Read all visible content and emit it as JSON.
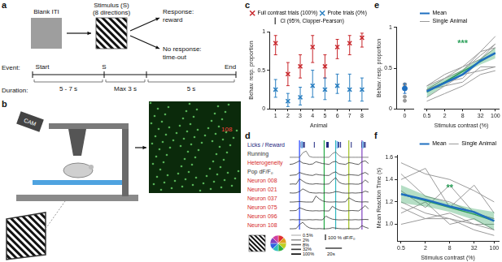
{
  "chart_data": [
    {
      "panel": "c",
      "type": "scatter",
      "xlabel": "Animal",
      "ylabel": "Behav. resp. proportion",
      "x": [
        1,
        2,
        3,
        4,
        5,
        6,
        7,
        8
      ],
      "xlim": [
        0.5,
        8.5
      ],
      "xticks": [
        1,
        2,
        3,
        4,
        5,
        6,
        7,
        8
      ],
      "ylim": [
        0,
        1
      ],
      "yticks": [
        0,
        0.5,
        1
      ],
      "grid": false,
      "legend": "top",
      "error_name": "CI (95%, Clopper-Pearson)",
      "error_color": "#000000",
      "series": [
        {
          "name": "Full contrast trials (100%)",
          "color": "#c8282d",
          "marker": "x",
          "values": [
            0.85,
            0.45,
            0.55,
            0.8,
            0.55,
            0.8,
            0.85,
            0.92
          ],
          "ci_low": [
            0.7,
            0.3,
            0.4,
            0.6,
            0.4,
            0.65,
            0.7,
            0.8
          ],
          "ci_high": [
            0.95,
            0.6,
            0.7,
            0.95,
            0.7,
            0.9,
            0.95,
            0.98
          ]
        },
        {
          "name": "Probe trials (0%)",
          "color": "#2a7fc1",
          "marker": "x",
          "values": [
            0.25,
            0.1,
            0.15,
            0.3,
            0.25,
            0.3,
            0.25,
            0.25
          ],
          "ci_low": [
            0.15,
            0.03,
            0.05,
            0.15,
            0.12,
            0.2,
            0.1,
            0.1
          ],
          "ci_high": [
            0.38,
            0.2,
            0.28,
            0.5,
            0.4,
            0.45,
            0.45,
            0.4
          ]
        }
      ]
    },
    {
      "panel": "e",
      "type": "line",
      "log": "x",
      "xlabel": "Stimulus contrast (%)",
      "ylabel": "Behav. resp. proportion",
      "x": [
        0.5,
        2,
        8,
        32,
        100
      ],
      "xlim": [
        0.4,
        130
      ],
      "xticks": [
        0.5,
        2,
        8,
        32,
        100
      ],
      "ylim": [
        0,
        1
      ],
      "yticks": [
        0,
        0.5,
        1
      ],
      "grid": false,
      "legend": "top left",
      "mean": {
        "name": "Mean",
        "color": "#1f6fc0",
        "values": [
          0.23,
          0.34,
          0.45,
          0.63,
          0.73
        ]
      },
      "animals": {
        "name": "Single Animal",
        "color": "#9a9a9a",
        "values": [
          [
            0.25,
            0.35,
            0.5,
            0.7,
            0.85
          ],
          [
            0.1,
            0.2,
            0.3,
            0.45,
            0.5
          ],
          [
            0.15,
            0.3,
            0.45,
            0.5,
            0.55
          ],
          [
            0.3,
            0.4,
            0.55,
            0.75,
            0.8
          ],
          [
            0.25,
            0.3,
            0.35,
            0.55,
            0.55
          ],
          [
            0.3,
            0.45,
            0.55,
            0.65,
            0.8
          ],
          [
            0.25,
            0.35,
            0.4,
            0.65,
            0.85
          ],
          [
            0.25,
            0.4,
            0.5,
            0.75,
            0.95
          ]
        ]
      },
      "fit": {
        "color": "#2ca05a",
        "values": [
          0.22,
          0.35,
          0.49,
          0.62,
          0.73
        ],
        "ci_low": [
          0.15,
          0.31,
          0.46,
          0.58,
          0.66
        ],
        "ci_high": [
          0.29,
          0.39,
          0.52,
          0.66,
          0.8
        ]
      },
      "annotation": {
        "text": "***",
        "x": 8,
        "y": 0.85,
        "color": "#2ca05a"
      },
      "zero": {
        "x": 0,
        "xlim": [
          -1,
          1
        ],
        "xticks": [
          0
        ],
        "mean": 0.25,
        "mean_ci_low": 0.19,
        "mean_ci_high": 0.31,
        "animals": [
          0.25,
          0.1,
          0.15,
          0.3,
          0.25,
          0.3,
          0.25,
          0.25
        ]
      }
    },
    {
      "panel": "f",
      "type": "line",
      "log": "x",
      "xlabel": "Stimulus contrast (%)",
      "ylabel": "Mean Reaction Time (s)",
      "x": [
        0.5,
        2,
        8,
        32,
        100
      ],
      "xlim": [
        0.4,
        130
      ],
      "xticks": [
        0.5,
        2,
        8,
        32,
        100
      ],
      "ylim": [
        0.85,
        1.62
      ],
      "yticks": [
        {
          "value": 1,
          "label": "1.0"
        },
        1.2,
        1.4,
        1.6
      ],
      "grid": false,
      "legend": "top right",
      "mean": {
        "name": "Mean",
        "color": "#1f6fc0",
        "values": [
          1.27,
          1.22,
          1.16,
          1.11,
          1.03
        ]
      },
      "animals": {
        "name": "Single Animal",
        "color": "#9a9a9a",
        "values": [
          [
            1.55,
            1.45,
            1.4,
            1.3,
            1.2
          ],
          [
            1.4,
            1.5,
            1.15,
            1.35,
            1.1
          ],
          [
            1.3,
            1.15,
            1.35,
            1.1,
            1.05
          ],
          [
            1.2,
            1.1,
            1.05,
            1.0,
            0.95
          ],
          [
            1.15,
            1.05,
            1.1,
            1.0,
            1.0
          ],
          [
            1.1,
            1.2,
            1.0,
            1.05,
            0.95
          ],
          [
            1.0,
            1.05,
            1.05,
            0.95,
            0.9
          ],
          [
            1.45,
            1.25,
            1.2,
            1.1,
            1.05
          ]
        ]
      },
      "fit": {
        "color": "#2ca05a",
        "values": [
          1.27,
          1.21,
          1.15,
          1.09,
          1.03
        ],
        "ci_low": [
          1.19,
          1.16,
          1.11,
          1.04,
          0.95
        ],
        "ci_high": [
          1.35,
          1.26,
          1.19,
          1.14,
          1.11
        ]
      },
      "annotation": {
        "text": "**",
        "x": 8,
        "y": 1.32,
        "color": "#2ca05a"
      }
    }
  ],
  "figure": {
    "panel_a": {
      "letter": "a",
      "blank": "Blank ITI",
      "stimulus": "Stimulus (S)",
      "directions": "(8 directions)",
      "response": "Response:",
      "reward": "reward",
      "no_response": "No response:",
      "timeout": "time-out",
      "event_label": "Event:",
      "duration_label": "Duration:",
      "events": [
        "Start",
        "S",
        "End"
      ],
      "durations": [
        "5 - 7 s",
        "Max 3 s",
        "5 s"
      ]
    },
    "panel_b": {
      "letter": "b",
      "cam": "CAM",
      "cell_label": "108"
    },
    "panel_d": {
      "letter": "d",
      "xlim": [
        0,
        100
      ],
      "t": [
        0,
        4,
        8,
        12,
        16,
        20,
        24,
        28,
        32,
        36,
        40,
        44,
        48,
        52,
        56,
        60,
        64,
        68,
        72,
        76,
        80,
        84,
        88,
        92,
        96
      ],
      "stimuli": [
        {
          "t": 12,
          "color": "#2040ff"
        },
        {
          "t": 42,
          "color": "#22aa44"
        },
        {
          "t": 56,
          "color": "#30b8c0"
        },
        {
          "t": 72,
          "color": "#a0c020"
        },
        {
          "t": 88,
          "color": "#8040c0"
        }
      ],
      "events": {
        "label": "Licks / Reward",
        "label_color": "#1a237e",
        "lick_color": "#1a237e",
        "reward_color": "#7fb8ee",
        "licks": [
          14,
          15,
          16,
          17,
          18,
          30,
          45,
          46,
          47,
          58,
          59,
          60,
          62,
          75,
          88,
          89,
          90,
          91,
          92
        ],
        "rewards": [
          15,
          58,
          89
        ]
      },
      "traces": [
        {
          "label": "Running",
          "label_color": "#333333",
          "color": "#666666",
          "ylim": [
            0,
            10
          ],
          "values": [
            1,
            1,
            1,
            1,
            6,
            8,
            2,
            1,
            1,
            1,
            1,
            1,
            1,
            5,
            7,
            3,
            1,
            1,
            1,
            1,
            1,
            1,
            1,
            1,
            1
          ]
        },
        {
          "label": "Heterogeneity",
          "label_color": "#d62728",
          "color": "#333333",
          "ylim": [
            0,
            1
          ],
          "values": [
            0.3,
            0.35,
            0.5,
            0.7,
            0.45,
            0.4,
            0.3,
            0.35,
            0.6,
            0.5,
            0.4,
            0.35,
            0.3,
            0.55,
            0.65,
            0.4,
            0.35,
            0.3,
            0.5,
            0.45,
            0.35,
            0.3,
            0.6,
            0.7,
            0.4
          ]
        },
        {
          "label": "Pop dF/F₀",
          "label_color": "#333333",
          "color": "#333333",
          "ylim": [
            0,
            60
          ],
          "values": [
            4,
            6,
            8,
            24,
            16,
            10,
            6,
            4,
            12,
            8,
            6,
            4,
            4,
            20,
            28,
            12,
            6,
            4,
            10,
            8,
            6,
            4,
            16,
            24,
            10
          ]
        },
        {
          "label": "Neuron 008",
          "label_color": "#d62728",
          "color": "#333333",
          "ylim": [
            -10,
            150
          ],
          "values": [
            4,
            8,
            4,
            100,
            60,
            24,
            8,
            4,
            12,
            8,
            4,
            4,
            8,
            72,
            120,
            40,
            12,
            4,
            8,
            8,
            4,
            4,
            24,
            80,
            32
          ]
        },
        {
          "label": "Neuron 021",
          "label_color": "#d62728",
          "color": "#333333",
          "ylim": [
            -10,
            150
          ],
          "values": [
            8,
            4,
            8,
            32,
            80,
            48,
            16,
            8,
            4,
            8,
            4,
            8,
            4,
            12,
            32,
            24,
            8,
            4,
            4,
            8,
            4,
            8,
            12,
            40,
            20
          ]
        },
        {
          "label": "Neuron 037",
          "label_color": "#d62728",
          "color": "#333333",
          "ylim": [
            -10,
            150
          ],
          "values": [
            4,
            4,
            8,
            12,
            8,
            4,
            4,
            4,
            112,
            60,
            24,
            8,
            4,
            4,
            8,
            4,
            4,
            8,
            80,
            48,
            16,
            8,
            4,
            8,
            4
          ]
        },
        {
          "label": "Neuron 075",
          "label_color": "#d62728",
          "color": "#333333",
          "ylim": [
            -10,
            150
          ],
          "values": [
            8,
            8,
            12,
            60,
            40,
            16,
            8,
            4,
            8,
            4,
            8,
            4,
            4,
            88,
            48,
            20,
            8,
            4,
            8,
            12,
            8,
            4,
            48,
            100,
            40
          ]
        },
        {
          "label": "Neuron 096",
          "label_color": "#d62728",
          "color": "#333333",
          "ylim": [
            -10,
            150
          ],
          "values": [
            4,
            8,
            4,
            8,
            4,
            4,
            8,
            4,
            8,
            4,
            4,
            72,
            40,
            16,
            8,
            4,
            4,
            8,
            4,
            4,
            8,
            4,
            8,
            12,
            8
          ]
        },
        {
          "label": "Neuron 108",
          "label_color": "#d62728",
          "color": "#333333",
          "ylim": [
            -10,
            150
          ],
          "values": [
            4,
            4,
            8,
            80,
            120,
            56,
            20,
            8,
            4,
            8,
            4,
            4,
            8,
            24,
            16,
            8,
            4,
            4,
            8,
            4,
            4,
            8,
            60,
            32,
            12
          ]
        }
      ],
      "scale_bar": {
        "time": 20,
        "time_label": "20s",
        "dff": 100,
        "dff_label": "100 % dF/F₀"
      },
      "direction_colors": [
        "#e03030",
        "#e0a020",
        "#c0d020",
        "#30b040",
        "#30c0c0",
        "#3060e0",
        "#8040c0",
        "#d040a0"
      ],
      "contrast_labels": [
        "0.5%",
        "2%",
        "8%",
        "32%",
        "100%"
      ]
    }
  }
}
